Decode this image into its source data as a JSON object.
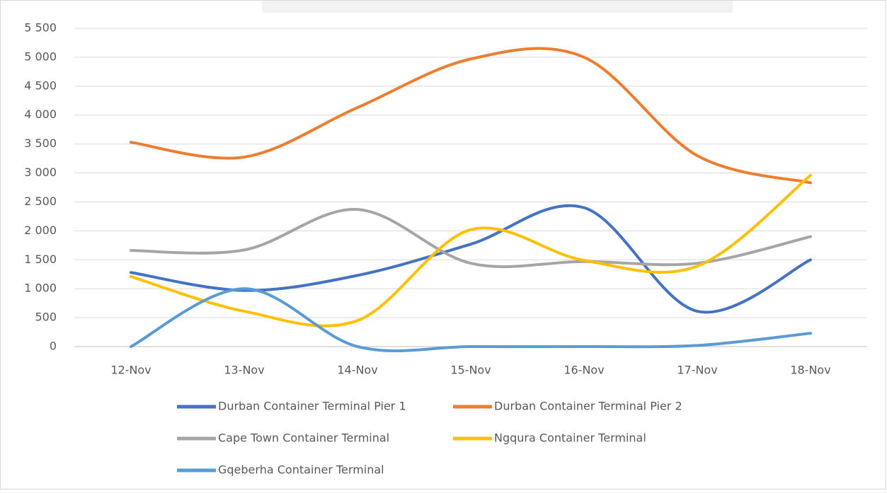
{
  "chart_data": {
    "type": "line",
    "categories": [
      "12-Nov",
      "13-Nov",
      "14-Nov",
      "15-Nov",
      "16-Nov",
      "17-Nov",
      "18-Nov"
    ],
    "series": [
      {
        "name": "Durban Container Terminal Pier 1",
        "color": "#4472c4",
        "values": [
          1280,
          970,
          1230,
          1770,
          2400,
          610,
          1500
        ]
      },
      {
        "name": "Durban Container Terminal Pier 2",
        "color": "#ed7d31",
        "values": [
          3530,
          3275,
          4130,
          4970,
          5000,
          3300,
          2830
        ]
      },
      {
        "name": "Cape Town Container Terminal",
        "color": "#a5a5a5",
        "values": [
          1660,
          1670,
          2370,
          1440,
          1470,
          1440,
          1900
        ]
      },
      {
        "name": "Ngqura Container Terminal",
        "color": "#ffc000",
        "values": [
          1210,
          610,
          450,
          2020,
          1490,
          1390,
          2960
        ]
      },
      {
        "name": "Gqeberha Container Terminal",
        "color": "#5b9bd5",
        "values": [
          0,
          1000,
          0,
          0,
          0,
          20,
          230
        ]
      }
    ],
    "ylim": [
      0,
      5500
    ],
    "yticks": [
      0,
      500,
      {
        "value": 1000,
        "label": "1 000"
      },
      {
        "value": 1500,
        "label": "1 500"
      },
      {
        "value": 2000,
        "label": "2 000"
      },
      {
        "value": 2500,
        "label": "2 500"
      },
      {
        "value": 3000,
        "label": "3 000"
      },
      {
        "value": 3500,
        "label": "3 500"
      },
      {
        "value": 4000,
        "label": "4 000"
      },
      {
        "value": 4500,
        "label": "4 500"
      },
      {
        "value": 5000,
        "label": "5 000"
      },
      {
        "value": 5500,
        "label": "5 500"
      }
    ],
    "grid": true,
    "smooth": true,
    "legend": "bottom"
  }
}
